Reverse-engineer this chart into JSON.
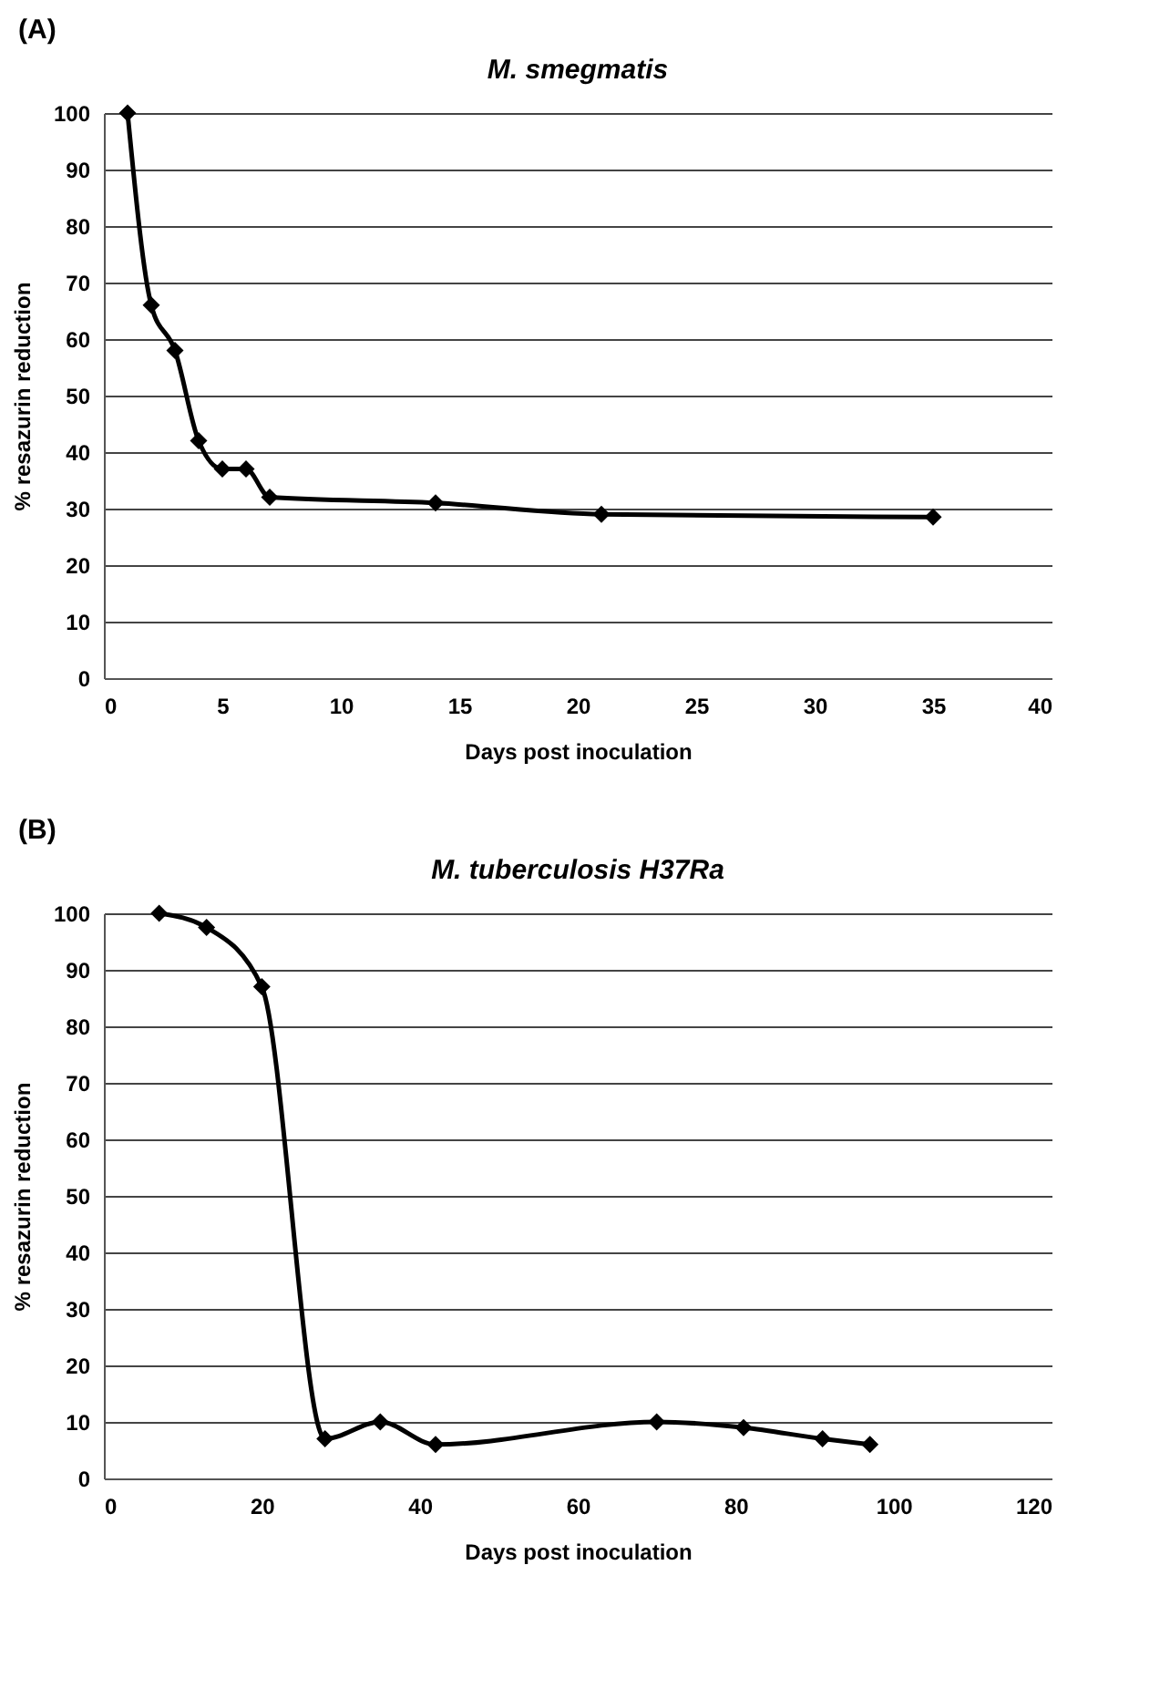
{
  "chart_data": [
    {
      "type": "line",
      "title": "M. smegmatis",
      "xlabel": "Days post inoculation",
      "ylabel": "% resazurin reduction",
      "annotations": [
        "(A)"
      ],
      "x": [
        1,
        2,
        3,
        4,
        5,
        6,
        7,
        14,
        21,
        35
      ],
      "series": [
        {
          "color": "#000000",
          "values": [
            100,
            66,
            58,
            42,
            37,
            37,
            32,
            31,
            29,
            28.5
          ]
        }
      ],
      "xlim": [
        0,
        40
      ],
      "xticks": [
        0,
        5,
        10,
        15,
        20,
        25,
        30,
        35,
        40
      ],
      "ylim": [
        0,
        100
      ],
      "yticks": [
        0,
        10,
        20,
        30,
        40,
        50,
        60,
        70,
        80,
        90,
        100
      ],
      "grid": "y",
      "marker": "diamond",
      "line_style": "solid"
    },
    {
      "type": "line",
      "title": "M. tuberculosis H37Ra",
      "xlabel": "Days post inoculation",
      "ylabel": "% resazurin reduction",
      "annotations": [
        "(B)"
      ],
      "x": [
        7,
        13,
        20,
        28,
        35,
        42,
        70,
        81,
        91,
        97
      ],
      "series": [
        {
          "color": "#000000",
          "values": [
            100,
            97.5,
            87,
            7,
            10,
            6,
            10,
            9,
            7,
            6
          ]
        }
      ],
      "xlim": [
        0,
        120
      ],
      "xticks": [
        0,
        20,
        40,
        60,
        80,
        100,
        120
      ],
      "ylim": [
        0,
        100
      ],
      "yticks": [
        0,
        10,
        20,
        30,
        40,
        50,
        60,
        70,
        80,
        90,
        100
      ],
      "grid": "y",
      "marker": "diamond",
      "line_style": "solid"
    }
  ]
}
